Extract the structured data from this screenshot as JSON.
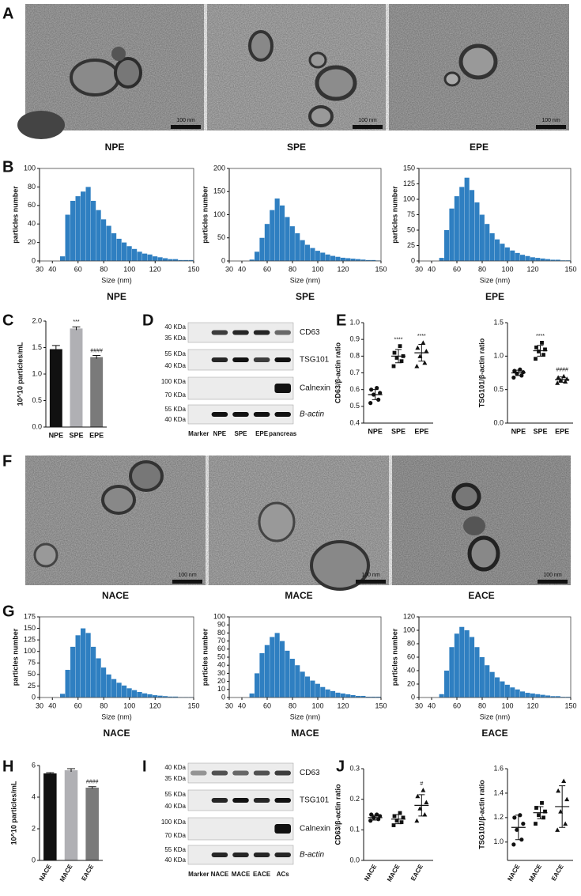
{
  "panel_letters": [
    "A",
    "B",
    "C",
    "D",
    "E",
    "F",
    "G",
    "H",
    "I",
    "J"
  ],
  "tem": [
    {
      "labels": [
        "NPE",
        "SPE",
        "EPE"
      ],
      "scale_bar": "100 nm"
    },
    {
      "labels": [
        "NACE",
        "MACE",
        "EACE"
      ],
      "scale_bar": "100 nm"
    }
  ],
  "blots": [
    {
      "kda": [
        "40 KDa",
        "35 KDa",
        "55 KDa",
        "40 KDa",
        "100 KDa",
        "70 KDa",
        "55 KDa",
        "40 KDa"
      ],
      "proteins": [
        "CD63",
        "TSG101",
        "Calnexin",
        "B-actin"
      ],
      "lanes": [
        "Marker",
        "NPE",
        "SPE",
        "EPE",
        "pancreas"
      ]
    },
    {
      "kda": [
        "40 KDa",
        "35 KDa",
        "55 KDa",
        "40 KDa",
        "100 KDa",
        "70 KDa",
        "55 KDa",
        "40 KDa"
      ],
      "proteins": [
        "CD63",
        "TSG101",
        "Calnexin",
        "B-actin"
      ],
      "lanes": [
        "Marker",
        "NACE",
        "MACE",
        "EACE",
        "ACs"
      ]
    }
  ],
  "chart_data": [
    {
      "type": "histogram",
      "title": "NPE",
      "xlabel": "Size (nm)",
      "ylabel": "particles number",
      "color": "#2f7fc1",
      "bins": [
        30,
        34,
        38,
        42,
        46,
        50,
        54,
        58,
        62,
        66,
        70,
        74,
        78,
        82,
        86,
        90,
        94,
        98,
        102,
        106,
        110,
        114,
        118,
        122,
        126,
        130,
        134,
        138,
        142,
        146,
        150
      ],
      "values": [
        0,
        0,
        0,
        0,
        5,
        50,
        65,
        70,
        75,
        80,
        65,
        55,
        45,
        38,
        30,
        24,
        20,
        16,
        13,
        10,
        8,
        7,
        5,
        4,
        3,
        2,
        2,
        1,
        1,
        1
      ],
      "xlim": [
        30,
        150
      ],
      "ylim": [
        0,
        100
      ],
      "xticks": [
        30,
        40,
        60,
        80,
        100,
        120,
        150
      ],
      "yticks": [
        0,
        20,
        40,
        60,
        80,
        100
      ]
    },
    {
      "type": "histogram",
      "title": "SPE",
      "xlabel": "Size (nm)",
      "ylabel": "particles number",
      "color": "#2f7fc1",
      "bins": [
        30,
        34,
        38,
        42,
        46,
        50,
        54,
        58,
        62,
        66,
        70,
        74,
        78,
        82,
        86,
        90,
        94,
        98,
        102,
        106,
        110,
        114,
        118,
        122,
        126,
        130,
        134,
        138,
        142,
        146,
        150
      ],
      "values": [
        0,
        0,
        0,
        0,
        3,
        20,
        50,
        80,
        110,
        135,
        120,
        95,
        75,
        60,
        45,
        35,
        28,
        22,
        18,
        14,
        11,
        9,
        7,
        6,
        5,
        4,
        3,
        2,
        2,
        1
      ],
      "xlim": [
        30,
        150
      ],
      "ylim": [
        0,
        200
      ],
      "xticks": [
        30,
        40,
        60,
        80,
        100,
        120,
        150
      ],
      "yticks": [
        0,
        50,
        100,
        150,
        200
      ]
    },
    {
      "type": "histogram",
      "title": "EPE",
      "xlabel": "Size (nm)",
      "ylabel": "particles number",
      "color": "#2f7fc1",
      "bins": [
        30,
        34,
        38,
        42,
        46,
        50,
        54,
        58,
        62,
        66,
        70,
        74,
        78,
        82,
        86,
        90,
        94,
        98,
        102,
        106,
        110,
        114,
        118,
        122,
        126,
        130,
        134,
        138,
        142,
        146,
        150
      ],
      "values": [
        0,
        0,
        0,
        0,
        5,
        50,
        85,
        105,
        120,
        135,
        115,
        95,
        75,
        60,
        45,
        35,
        28,
        22,
        17,
        13,
        10,
        8,
        6,
        5,
        4,
        3,
        2,
        2,
        1,
        1
      ],
      "xlim": [
        30,
        150
      ],
      "ylim": [
        0,
        150
      ],
      "xticks": [
        30,
        40,
        60,
        80,
        100,
        120,
        150
      ],
      "yticks": [
        0,
        25,
        50,
        75,
        100,
        125,
        150
      ]
    },
    {
      "type": "bar",
      "ylabel": "10^10 particles/mL",
      "categories": [
        "NPE",
        "SPE",
        "EPE"
      ],
      "values": [
        1.47,
        1.86,
        1.32
      ],
      "errors": [
        0.07,
        0.03,
        0.03
      ],
      "colors": [
        "#111111",
        "#b0b0b4",
        "#7a7a7a"
      ],
      "annotations": [
        null,
        "***",
        "####"
      ],
      "rotate_labels": false,
      "ylim": [
        0,
        2
      ],
      "yticks": [
        {
          "value": 0,
          "label": "0.0"
        },
        0.5,
        {
          "value": 1,
          "label": "1.0"
        },
        1.5,
        {
          "value": 2,
          "label": "2.0"
        }
      ]
    },
    {
      "type": "dotplot",
      "ylabel": "CD63/β-actin ratio",
      "categories": [
        "NPE",
        "SPE",
        "EPE"
      ],
      "points": [
        [
          0.52,
          0.54,
          0.57,
          0.58,
          0.6,
          0.61
        ],
        [
          0.74,
          0.77,
          0.79,
          0.8,
          0.82,
          0.86
        ],
        [
          0.74,
          0.76,
          0.8,
          0.83,
          0.85,
          0.88
        ]
      ],
      "means": [
        0.57,
        0.8,
        0.82
      ],
      "sds": [
        0.03,
        0.04,
        0.05
      ],
      "markers": [
        "circle",
        "square",
        "triangle"
      ],
      "annotations": [
        null,
        "****",
        "****"
      ],
      "rotate_labels": false,
      "ylim": [
        0.4,
        1.0
      ],
      "yticks": [
        0.4,
        0.5,
        0.6,
        0.7,
        0.8,
        0.9,
        {
          "value": 1,
          "label": "1.0"
        }
      ]
    },
    {
      "type": "dotplot",
      "ylabel": "TSG101/β-actin ratio",
      "categories": [
        "NPE",
        "SPE",
        "EPE"
      ],
      "points": [
        [
          0.68,
          0.71,
          0.74,
          0.76,
          0.78,
          0.8
        ],
        [
          0.96,
          1.02,
          1.07,
          1.1,
          1.13,
          1.2
        ],
        [
          0.6,
          0.62,
          0.64,
          0.66,
          0.68,
          0.7
        ]
      ],
      "means": [
        0.75,
        1.08,
        0.65
      ],
      "sds": [
        0.04,
        0.08,
        0.04
      ],
      "markers": [
        "circle",
        "square",
        "triangle"
      ],
      "annotations": [
        null,
        "****",
        "####"
      ],
      "rotate_labels": false,
      "ylim": [
        0,
        1.5
      ],
      "yticks": [
        {
          "value": 0,
          "label": "0.0"
        },
        0.5,
        {
          "value": 1,
          "label": "1.0"
        },
        1.5
      ]
    },
    {
      "type": "histogram",
      "title": "NACE",
      "xlabel": "Size (nm)",
      "ylabel": "particles number",
      "color": "#2f7fc1",
      "bins": [
        30,
        34,
        38,
        42,
        46,
        50,
        54,
        58,
        62,
        66,
        70,
        74,
        78,
        82,
        86,
        90,
        94,
        98,
        102,
        106,
        110,
        114,
        118,
        122,
        126,
        130,
        134,
        138,
        142,
        146,
        150
      ],
      "values": [
        0,
        0,
        0,
        0,
        8,
        60,
        110,
        135,
        150,
        140,
        110,
        85,
        65,
        50,
        40,
        32,
        26,
        20,
        16,
        12,
        9,
        7,
        5,
        4,
        3,
        2,
        2,
        1,
        1,
        1
      ],
      "xlim": [
        30,
        150
      ],
      "ylim": [
        0,
        175
      ],
      "xticks": [
        30,
        40,
        60,
        80,
        100,
        120,
        150
      ],
      "yticks": [
        0,
        25,
        50,
        75,
        100,
        125,
        150,
        175
      ]
    },
    {
      "type": "histogram",
      "title": "MACE",
      "xlabel": "Size (nm)",
      "ylabel": "particles number",
      "color": "#2f7fc1",
      "bins": [
        30,
        34,
        38,
        42,
        46,
        50,
        54,
        58,
        62,
        66,
        70,
        74,
        78,
        82,
        86,
        90,
        94,
        98,
        102,
        106,
        110,
        114,
        118,
        122,
        126,
        130,
        134,
        138,
        142,
        146,
        150
      ],
      "values": [
        0,
        0,
        0,
        0,
        5,
        30,
        55,
        65,
        75,
        80,
        70,
        58,
        48,
        40,
        32,
        26,
        21,
        17,
        13,
        10,
        8,
        6,
        5,
        4,
        3,
        2,
        2,
        1,
        1,
        1
      ],
      "xlim": [
        30,
        150
      ],
      "ylim": [
        0,
        100
      ],
      "xticks": [
        30,
        40,
        60,
        80,
        100,
        120,
        150
      ],
      "yticks": [
        0,
        10,
        20,
        30,
        40,
        50,
        60,
        70,
        80,
        90,
        100
      ]
    },
    {
      "type": "histogram",
      "title": "EACE",
      "xlabel": "Size (nm)",
      "ylabel": "particles number",
      "color": "#2f7fc1",
      "bins": [
        30,
        34,
        38,
        42,
        46,
        50,
        54,
        58,
        62,
        66,
        70,
        74,
        78,
        82,
        86,
        90,
        94,
        98,
        102,
        106,
        110,
        114,
        118,
        122,
        126,
        130,
        134,
        138,
        142,
        146,
        150
      ],
      "values": [
        0,
        0,
        0,
        0,
        5,
        40,
        75,
        95,
        105,
        100,
        90,
        75,
        60,
        48,
        38,
        30,
        24,
        19,
        15,
        12,
        9,
        7,
        6,
        5,
        4,
        3,
        2,
        2,
        1,
        1
      ],
      "xlim": [
        30,
        150
      ],
      "ylim": [
        0,
        120
      ],
      "xticks": [
        30,
        40,
        60,
        80,
        100,
        120,
        150
      ],
      "yticks": [
        0,
        20,
        40,
        60,
        80,
        100,
        120
      ]
    },
    {
      "type": "bar",
      "ylabel": "10^10 particles/mL",
      "categories": [
        "NACE",
        "MACE",
        "EACE"
      ],
      "values": [
        5.5,
        5.7,
        4.6
      ],
      "errors": [
        0.05,
        0.1,
        0.06
      ],
      "colors": [
        "#111111",
        "#b0b0b4",
        "#7a7a7a"
      ],
      "annotations": [
        null,
        null,
        "####"
      ],
      "rotate_labels": true,
      "ylim": [
        0,
        6
      ],
      "yticks": [
        0,
        2,
        4,
        6
      ]
    },
    {
      "type": "dotplot",
      "ylabel": "CD63/β-actin ratio",
      "categories": [
        "NACE",
        "MACE",
        "EACE"
      ],
      "points": [
        [
          0.13,
          0.135,
          0.14,
          0.145,
          0.15,
          0.15
        ],
        [
          0.115,
          0.125,
          0.13,
          0.14,
          0.145,
          0.155
        ],
        [
          0.13,
          0.15,
          0.17,
          0.19,
          0.21,
          0.23
        ]
      ],
      "means": [
        0.14,
        0.135,
        0.18
      ],
      "sds": [
        0.008,
        0.015,
        0.035
      ],
      "markers": [
        "circle",
        "square",
        "triangle"
      ],
      "annotations": [
        null,
        null,
        "#"
      ],
      "rotate_labels": true,
      "ylim": [
        0,
        0.3
      ],
      "yticks": [
        {
          "value": 0,
          "label": "0.0"
        },
        0.1,
        0.2,
        0.3
      ]
    },
    {
      "type": "dotplot",
      "ylabel": "TSG101/β-actin ratio",
      "categories": [
        "NACE",
        "MACE",
        "EACE"
      ],
      "points": [
        [
          0.98,
          1.02,
          1.1,
          1.15,
          1.2,
          1.22
        ],
        [
          1.15,
          1.2,
          1.22,
          1.25,
          1.28,
          1.32
        ],
        [
          1.1,
          1.15,
          1.25,
          1.35,
          1.42,
          1.5
        ]
      ],
      "means": [
        1.12,
        1.24,
        1.29
      ],
      "sds": [
        0.1,
        0.05,
        0.17
      ],
      "markers": [
        "circle",
        "square",
        "triangle"
      ],
      "annotations": [
        null,
        null,
        null
      ],
      "rotate_labels": true,
      "ylim": [
        0.85,
        1.6
      ],
      "yticks": [
        {
          "value": 1,
          "label": "1.0"
        },
        1.2,
        1.4,
        1.6
      ]
    }
  ]
}
